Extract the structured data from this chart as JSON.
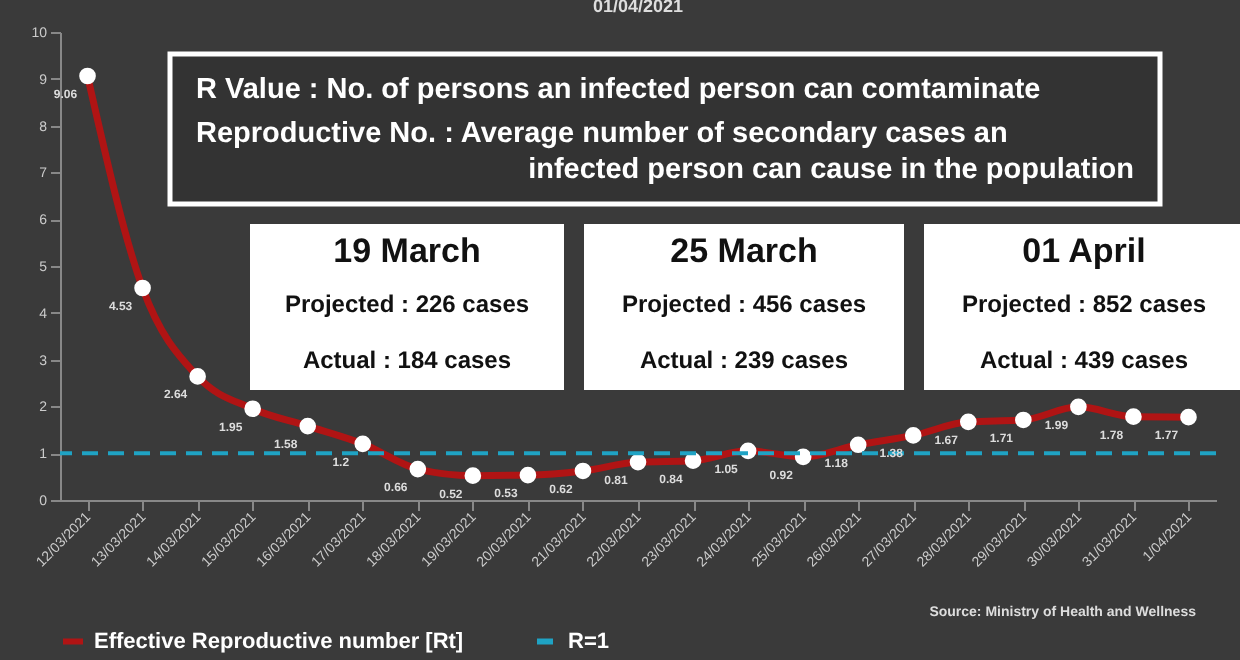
{
  "chart_data": {
    "type": "line",
    "title": "01/04/2021",
    "categories": [
      "12/03/2021",
      "13/03/2021",
      "14/03/2021",
      "15/03/2021",
      "16/03/2021",
      "17/03/2021",
      "18/03/2021",
      "19/03/2021",
      "20/03/2021",
      "21/03/2021",
      "22/03/2021",
      "23/03/2021",
      "24/03/2021",
      "25/03/2021",
      "26/03/2021",
      "27/03/2021",
      "28/03/2021",
      "29/03/2021",
      "30/03/2021",
      "31/03/2021",
      "1/04/2021"
    ],
    "series": [
      {
        "name": "Effective Reproductive number [Rt]",
        "color": "#b01414",
        "values": [
          9.06,
          4.53,
          2.64,
          1.95,
          1.58,
          1.2,
          0.66,
          0.52,
          0.53,
          0.62,
          0.81,
          0.84,
          1.05,
          0.92,
          1.18,
          1.38,
          1.67,
          1.71,
          1.99,
          1.78,
          1.77
        ]
      }
    ],
    "ylim": [
      0,
      10
    ],
    "yticks": [
      0,
      1,
      2,
      3,
      4,
      5,
      6,
      7,
      8,
      9,
      10
    ],
    "data_labels": true,
    "marker": "circle",
    "line_style": "solid",
    "grid": false,
    "legend": "bottom",
    "ref_lines": [
      {
        "axis": "y",
        "value": 1,
        "label": "R=1",
        "color": "#1fa3c4",
        "line_style": "dashed"
      }
    ],
    "annotations": [
      "R Value : No. of persons an infected person can comtaminate",
      "Reproductive No. : Average number of secondary cases an",
      "infected person can cause in the population",
      "19 March",
      "Projected : 226 cases",
      "Actual : 184 cases",
      "25 March",
      "Projected : 456 cases",
      "Actual : 239 cases",
      "01 April",
      "Projected : 852 cases",
      "Actual : 439 cases",
      "Source: Ministry of Health and Wellness"
    ]
  }
}
